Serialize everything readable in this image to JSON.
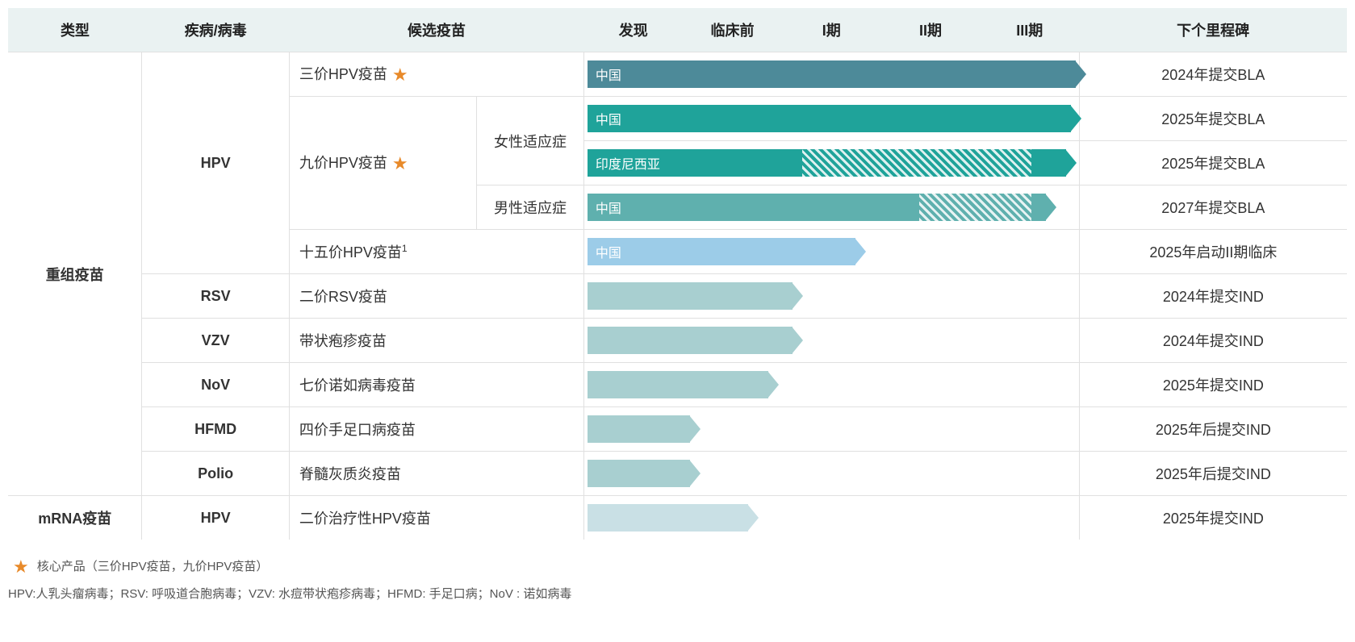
{
  "colors": {
    "header_bg": "#eaf2f2",
    "border": "#e0e0e0",
    "star": "#e88a2a",
    "dark_teal": "#4d8a99",
    "teal": "#1fa39a",
    "med_teal": "#5fb0ae",
    "light_blue": "#9ccce8",
    "pale_teal": "#a8cfd0",
    "very_pale": "#c9e0e5"
  },
  "layout": {
    "col_type_pct": 10,
    "col_disease_pct": 11,
    "col_candidate_pct": 14,
    "col_indication_pct": 8,
    "phase_area_pct": 37,
    "col_milestone_pct": 20,
    "phase_count": 5
  },
  "headers": {
    "type": "类型",
    "disease": "疾病/病毒",
    "candidate": "候选疫苗",
    "phase_cols": [
      "发现",
      "临床前",
      "I期",
      "II期",
      "III期"
    ],
    "milestone": "下个里程碑"
  },
  "rows": [
    {
      "category": "重组疫苗",
      "category_rowspan": 10,
      "disease": "HPV",
      "disease_rowspan": 5,
      "candidate": "三价HPV疫苗",
      "candidate_rowspan": 1,
      "star": true,
      "indication": null,
      "indication_span": 0,
      "bar": {
        "label": "中国",
        "color": "#4d8a99",
        "solid_end": 5,
        "hatch_start": null,
        "hatch_end": null,
        "arrow": true
      },
      "milestone": "2024年提交BLA"
    },
    {
      "candidate": "九价HPV疫苗",
      "candidate_rowspan": 3,
      "star": true,
      "indication": "女性适应症",
      "indication_span": 2,
      "bar": {
        "label": "中国",
        "color": "#1fa39a",
        "solid_end": 4.95,
        "hatch_start": null,
        "hatch_end": null,
        "arrow": true
      },
      "milestone": "2025年提交BLA"
    },
    {
      "bar": {
        "label": "印度尼西亚",
        "color": "#1fa39a",
        "solid_end": 2.2,
        "hatch_start": 2.2,
        "hatch_end": 4.55,
        "tail_solid_end": 4.9,
        "arrow": true
      },
      "milestone": "2025年提交BLA"
    },
    {
      "indication": "男性适应症",
      "indication_span": 1,
      "bar": {
        "label": "中国",
        "color": "#5fb0ae",
        "solid_end": 3.4,
        "hatch_start": 3.4,
        "hatch_end": 4.55,
        "tail_solid_end": 4.7,
        "arrow": true
      },
      "milestone": "2027年提交BLA"
    },
    {
      "candidate": "十五价HPV疫苗",
      "candidate_sup": "1",
      "candidate_rowspan": 1,
      "star": false,
      "indication": null,
      "indication_span": 0,
      "bar": {
        "label": "中国",
        "color": "#9ccce8",
        "solid_end": 2.75,
        "hatch_start": null,
        "hatch_end": null,
        "arrow": true
      },
      "milestone": "2025年启动II期临床"
    },
    {
      "disease": "RSV",
      "disease_rowspan": 1,
      "candidate": "二价RSV疫苗",
      "candidate_rowspan": 1,
      "star": false,
      "indication": null,
      "indication_span": 0,
      "bar": {
        "label": "",
        "color": "#a8cfd0",
        "solid_end": 2.1,
        "hatch_start": null,
        "hatch_end": null,
        "arrow": true
      },
      "milestone": "2024年提交IND"
    },
    {
      "disease": "VZV",
      "disease_rowspan": 1,
      "candidate": "带状疱疹疫苗",
      "candidate_rowspan": 1,
      "star": false,
      "indication": null,
      "indication_span": 0,
      "bar": {
        "label": "",
        "color": "#a8cfd0",
        "solid_end": 2.1,
        "hatch_start": null,
        "hatch_end": null,
        "arrow": true
      },
      "milestone": "2024年提交IND"
    },
    {
      "disease": "NoV",
      "disease_rowspan": 1,
      "candidate": "七价诺如病毒疫苗",
      "candidate_rowspan": 1,
      "star": false,
      "indication": null,
      "indication_span": 0,
      "bar": {
        "label": "",
        "color": "#a8cfd0",
        "solid_end": 1.85,
        "hatch_start": null,
        "hatch_end": null,
        "arrow": true
      },
      "milestone": "2025年提交IND"
    },
    {
      "disease": "HFMD",
      "disease_rowspan": 1,
      "candidate": "四价手足口病疫苗",
      "candidate_rowspan": 1,
      "star": false,
      "indication": null,
      "indication_span": 0,
      "bar": {
        "label": "",
        "color": "#a8cfd0",
        "solid_end": 1.05,
        "hatch_start": null,
        "hatch_end": null,
        "arrow": true
      },
      "milestone": "2025年后提交IND"
    },
    {
      "disease": "Polio",
      "disease_rowspan": 1,
      "candidate": "脊髓灰质炎疫苗",
      "candidate_rowspan": 1,
      "star": false,
      "indication": null,
      "indication_span": 0,
      "bar": {
        "label": "",
        "color": "#a8cfd0",
        "solid_end": 1.05,
        "hatch_start": null,
        "hatch_end": null,
        "arrow": true
      },
      "milestone": "2025年后提交IND"
    },
    {
      "category": "mRNA疫苗",
      "category_rowspan": 1,
      "disease": "HPV",
      "disease_rowspan": 1,
      "candidate": "二价治疗性HPV疫苗",
      "candidate_rowspan": 1,
      "star": false,
      "indication": null,
      "indication_span": 0,
      "bar": {
        "label": "",
        "color": "#c9e0e5",
        "solid_end": 1.65,
        "hatch_start": null,
        "hatch_end": null,
        "arrow": true
      },
      "milestone": "2025年提交IND"
    }
  ],
  "footnotes": {
    "star_note": "核心产品（三价HPV疫苗，九价HPV疫苗）",
    "glossary": "HPV:人乳头瘤病毒；RSV: 呼吸道合胞病毒；VZV: 水痘带状疱疹病毒；HFMD: 手足口病；NoV : 诺如病毒"
  }
}
